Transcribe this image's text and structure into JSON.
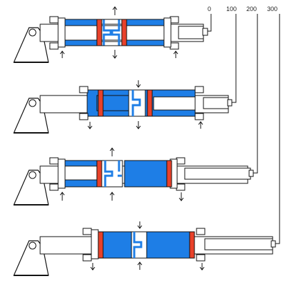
{
  "scale": {
    "labels": [
      "0",
      "100",
      "200",
      "300"
    ]
  },
  "colors": {
    "fluid": "#1e7ee6",
    "piston": "#e8412a",
    "steel": "#ffffff",
    "outline": "#111111",
    "port": "#111111",
    "lightPiston": "#cfe4f5"
  },
  "stages": [
    {
      "extension": 0
    },
    {
      "extension": 100
    },
    {
      "extension": 200
    },
    {
      "extension": 300
    }
  ]
}
